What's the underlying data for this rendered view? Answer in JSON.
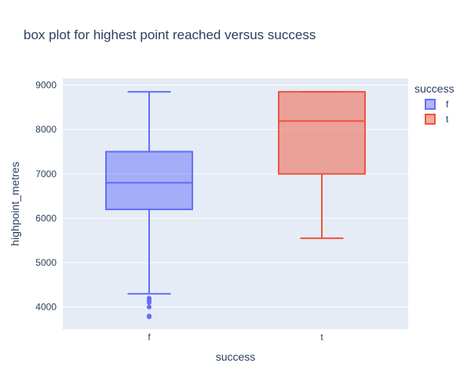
{
  "chart_data": {
    "type": "box",
    "title": "box plot for highest point reached versus success",
    "xlabel": "success",
    "ylabel": "highpoint_metres",
    "categories": [
      "f",
      "t"
    ],
    "ylim": [
      3500,
      9150
    ],
    "yticks": [
      4000,
      5000,
      6000,
      7000,
      8000,
      9000
    ],
    "ytick_labels": [
      "4000",
      "5000",
      "6000",
      "7000",
      "8000",
      "9000"
    ],
    "grid": true,
    "legend": {
      "title": "success",
      "placement": "top-right",
      "items": [
        {
          "label": "f",
          "color": "#636efa"
        },
        {
          "label": "t",
          "color": "#ef553b"
        }
      ]
    },
    "series": [
      {
        "name": "f",
        "color": "#636efa",
        "category": "f",
        "min": 4300,
        "q1": 6200,
        "median": 6800,
        "q3": 7500,
        "max": 8848,
        "outliers": [
          4200,
          4150,
          4100,
          4000,
          3800,
          3780
        ]
      },
      {
        "name": "t",
        "color": "#ef553b",
        "category": "t",
        "min": 5550,
        "q1": 7000,
        "median": 8190,
        "q3": 8848,
        "max": 8848,
        "outliers": []
      }
    ]
  }
}
